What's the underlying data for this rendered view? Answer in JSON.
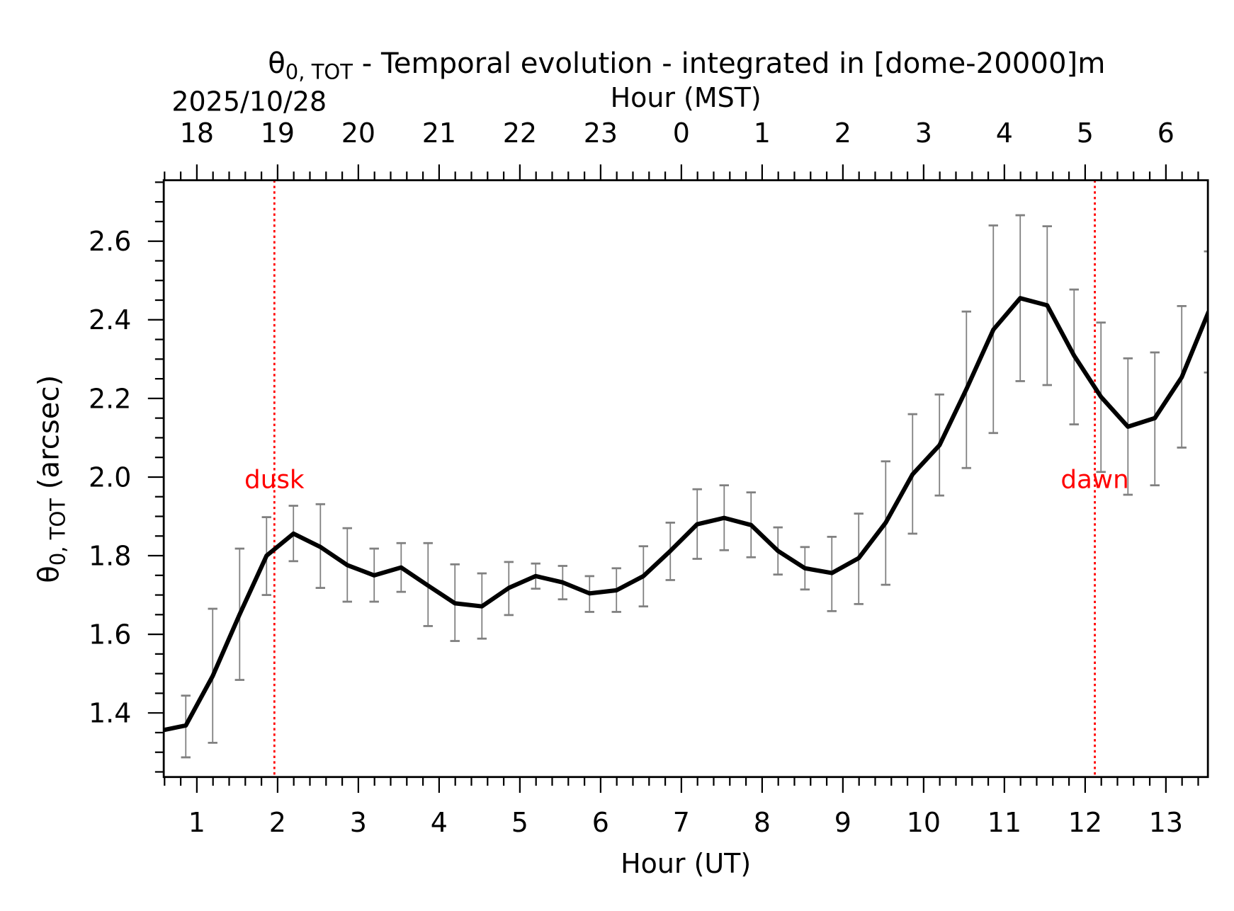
{
  "chart_data": {
    "type": "line",
    "title": "θ0,TOT - Temporal evolution - integrated in [dome-20000]m",
    "title_symbol": "θ",
    "title_subscript": "0, TOT",
    "title_rest": " - Temporal evolution - integrated in [dome-20000]m",
    "date_label": "2025/10/28",
    "xlabel": "Hour (UT)",
    "xlabel_top": "Hour (MST)",
    "ylabel_symbol": "θ",
    "ylabel_subscript": "0, TOT",
    "ylabel_rest": " (arcsec)",
    "xlim": [
      0.59,
      13.52
    ],
    "ylim": [
      1.237,
      2.755
    ],
    "xticks": [
      1,
      2,
      3,
      4,
      5,
      6,
      7,
      8,
      9,
      10,
      11,
      12,
      13
    ],
    "xtick_labels": [
      "1",
      "2",
      "3",
      "4",
      "5",
      "6",
      "7",
      "8",
      "9",
      "10",
      "11",
      "12",
      "13"
    ],
    "xticks_top_labels": [
      "18",
      "19",
      "20",
      "21",
      "22",
      "23",
      "0",
      "1",
      "2",
      "3",
      "4",
      "5",
      "6"
    ],
    "yticks": [
      1.4,
      1.6,
      1.8,
      2.0,
      2.2,
      2.4,
      2.6
    ],
    "ytick_labels": [
      "1.4",
      "1.6",
      "1.8",
      "2.0",
      "2.2",
      "2.4",
      "2.6"
    ],
    "grid": false,
    "colors": {
      "line": "#000000",
      "errorbar": "#808080",
      "marker_lines": "#ff0000"
    },
    "series": [
      {
        "x": [
          0.53,
          0.863,
          1.196,
          1.53,
          1.863,
          2.196,
          2.53,
          2.863,
          3.196,
          3.53,
          3.863,
          4.196,
          4.53,
          4.863,
          5.196,
          5.53,
          5.863,
          6.196,
          6.53,
          6.863,
          7.196,
          7.53,
          7.863,
          8.196,
          8.53,
          8.863,
          9.196,
          9.53,
          9.863,
          10.196,
          10.53,
          10.863,
          11.196,
          11.53,
          11.863,
          12.196,
          12.53,
          12.863,
          13.196,
          13.53
        ],
        "y": [
          1.354,
          1.368,
          1.494,
          1.651,
          1.8,
          1.856,
          1.822,
          1.776,
          1.75,
          1.77,
          1.724,
          1.679,
          1.671,
          1.718,
          1.748,
          1.732,
          1.704,
          1.712,
          1.748,
          1.812,
          1.88,
          1.896,
          1.878,
          1.812,
          1.768,
          1.756,
          1.794,
          1.884,
          2.007,
          2.081,
          2.224,
          2.375,
          2.455,
          2.437,
          2.309,
          2.204,
          2.128,
          2.15,
          2.254,
          2.421
        ],
        "err_high": [
          null,
          1.444,
          1.665,
          1.818,
          1.898,
          1.927,
          1.931,
          1.87,
          1.818,
          1.832,
          1.832,
          1.778,
          1.755,
          1.784,
          1.78,
          1.774,
          1.748,
          1.768,
          1.824,
          1.884,
          1.969,
          1.979,
          1.961,
          1.872,
          1.822,
          1.848,
          1.907,
          2.04,
          2.16,
          2.21,
          2.421,
          2.64,
          2.666,
          2.638,
          2.477,
          2.393,
          2.302,
          2.317,
          2.435,
          2.574
        ],
        "err_low": [
          null,
          1.287,
          1.324,
          1.484,
          1.7,
          1.786,
          1.718,
          1.683,
          1.683,
          1.708,
          1.621,
          1.583,
          1.589,
          1.649,
          1.716,
          1.689,
          1.657,
          1.657,
          1.671,
          1.738,
          1.792,
          1.814,
          1.796,
          1.752,
          1.714,
          1.659,
          1.677,
          1.726,
          1.856,
          1.953,
          2.023,
          2.112,
          2.244,
          2.234,
          2.134,
          2.013,
          1.955,
          1.979,
          2.075,
          2.266
        ]
      }
    ],
    "annotations": [
      {
        "label": "dusk",
        "x": 1.96
      },
      {
        "label": "dawn",
        "x": 12.12
      }
    ]
  }
}
